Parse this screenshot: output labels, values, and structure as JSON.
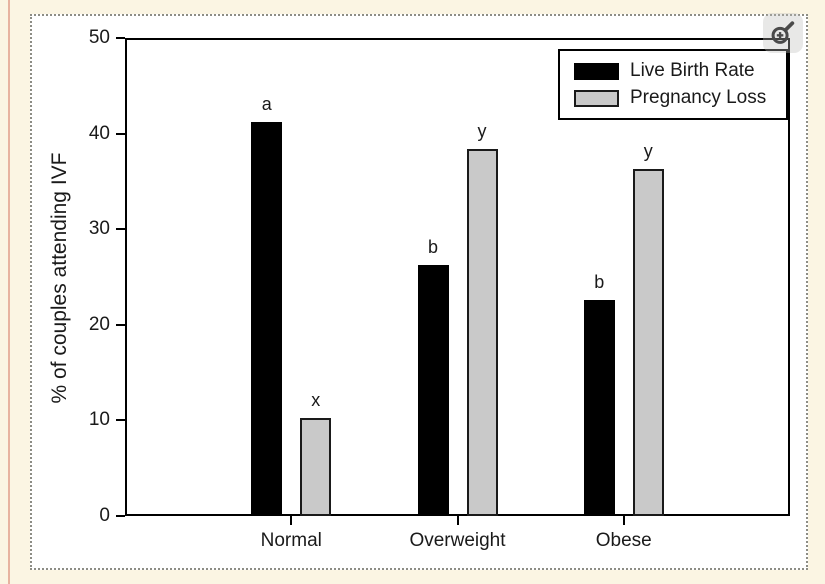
{
  "page": {
    "background_color": "#fbf5e3",
    "left_accent_color": "#e7b3a0",
    "plot_background": "#ffffff",
    "selection_border_style": "dotted"
  },
  "zoom_button": {
    "icon": "zoom-in-magnifier"
  },
  "chart_data": {
    "type": "bar",
    "title": "",
    "xlabel": "",
    "ylabel": "% of couples attending IVF",
    "ylim": [
      0,
      50
    ],
    "yticks": [
      0,
      10,
      20,
      30,
      40,
      50
    ],
    "categories": [
      "Normal",
      "Overweight",
      "Obese"
    ],
    "series": [
      {
        "name": "Live Birth Rate",
        "color": "#000000",
        "border_color": "#000000",
        "values": [
          41.2,
          26.3,
          22.6
        ],
        "bar_labels": [
          "a",
          "b",
          "b"
        ]
      },
      {
        "name": "Pregnancy Loss",
        "color": "#c9c9c9",
        "border_color": "#1a1a1a",
        "values": [
          10.3,
          38.4,
          36.3
        ],
        "bar_labels": [
          "x",
          "y",
          "y"
        ]
      }
    ],
    "legend_position": "top-right",
    "grid": false
  }
}
